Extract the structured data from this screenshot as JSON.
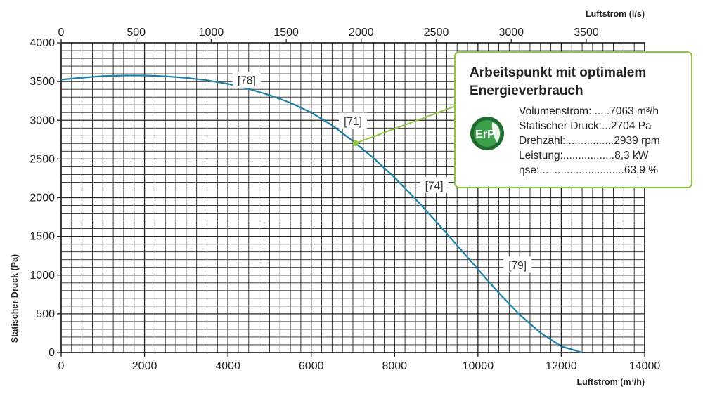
{
  "chart_data": {
    "type": "line",
    "x_bottom_label": "Luftstrom (m³/h)",
    "x_top_label": "Luftstrom (l/s)",
    "ylabel": "Statischer Druck (Pa)",
    "xlim": [
      0,
      14000
    ],
    "ylim": [
      0,
      4000
    ],
    "x_bottom_ticks": [
      "0",
      "2000",
      "4000",
      "6000",
      "8000",
      "10000",
      "12000",
      "14000"
    ],
    "x_top_ticks": [
      "0",
      "500",
      "1000",
      "1500",
      "2000",
      "2500",
      "3000",
      "3500"
    ],
    "y_ticks": [
      "0",
      "500",
      "1000",
      "1500",
      "2000",
      "2500",
      "3000",
      "3500",
      "4000"
    ],
    "grid": true,
    "series": [
      {
        "color": "#1b7fa8",
        "x": [
          0,
          500,
          1000,
          1500,
          2000,
          2500,
          3000,
          3500,
          4000,
          4500,
          5000,
          5500,
          6000,
          6500,
          7000,
          7500,
          8000,
          8500,
          9000,
          9500,
          10000,
          10500,
          11000,
          11500,
          12000,
          12500
        ],
        "y": [
          3525,
          3550,
          3570,
          3578,
          3578,
          3568,
          3548,
          3517,
          3470,
          3405,
          3325,
          3225,
          3100,
          2935,
          2730,
          2510,
          2260,
          1985,
          1690,
          1385,
          1075,
          770,
          490,
          255,
          80,
          0
        ]
      }
    ],
    "callouts": [
      {
        "label": "[78]",
        "x": 4450,
        "y": 3520
      },
      {
        "label": "[71]",
        "x": 7000,
        "y": 2990
      },
      {
        "label": "[74]",
        "x": 8950,
        "y": 2160
      },
      {
        "label": "[79]",
        "x": 10950,
        "y": 1130
      }
    ],
    "operating_point": {
      "x": 7063,
      "y": 2704,
      "color": "#8dc63f"
    }
  },
  "infobox": {
    "title": "Arbeitspunkt mit optimalem Energieverbrauch",
    "logo_text": "ErP",
    "accent": "#8dc63f",
    "rows": [
      "Volumenstrom:......7063 m³/h",
      "Statischer Druck:...2704 Pa",
      "Drehzahl:................2939 rpm",
      "Leistung:.................8,3 kW",
      "ηse:............................63,9 %"
    ]
  }
}
